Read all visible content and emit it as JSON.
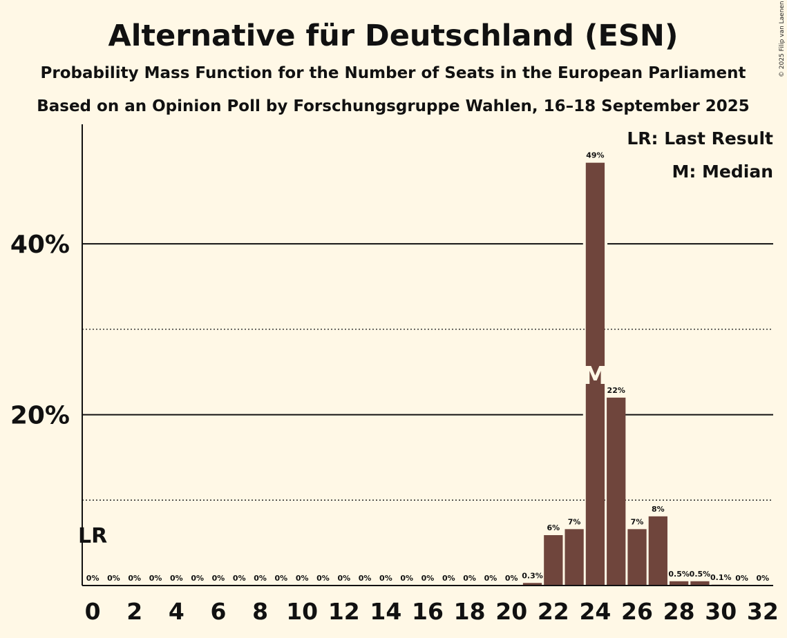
{
  "copyright": "© 2025 Filip van Laenen",
  "chart_data": {
    "type": "bar",
    "title": "Alternative für Deutschland (ESN)",
    "subtitle": "Probability Mass Function for the Number of Seats in the European Parliament",
    "subtitle2": "Based on an Opinion Poll by Forschungsgruppe Wahlen, 16–18 September 2025",
    "x": [
      0,
      1,
      2,
      3,
      4,
      5,
      6,
      7,
      8,
      9,
      10,
      11,
      12,
      13,
      14,
      15,
      16,
      17,
      18,
      19,
      20,
      21,
      22,
      23,
      24,
      25,
      26,
      27,
      28,
      29,
      30,
      31,
      32
    ],
    "values": [
      0,
      0,
      0,
      0,
      0,
      0,
      0,
      0,
      0,
      0,
      0,
      0,
      0,
      0,
      0,
      0,
      0,
      0,
      0,
      0,
      0,
      0.3,
      5.9,
      6.6,
      49.5,
      22,
      6.6,
      8.1,
      0.5,
      0.5,
      0.1,
      0,
      0
    ],
    "data_labels": [
      "0%",
      "0%",
      "0%",
      "0%",
      "0%",
      "0%",
      "0%",
      "0%",
      "0%",
      "0%",
      "0%",
      "0%",
      "0%",
      "0%",
      "0%",
      "0%",
      "0%",
      "0%",
      "0%",
      "0%",
      "0%",
      "0.3%",
      "6%",
      "7%",
      "49%",
      "22%",
      "7%",
      "8%",
      "0.5%",
      "0.5%",
      "0.1%",
      "0%",
      "0%"
    ],
    "x_ticks": [
      0,
      2,
      4,
      6,
      8,
      10,
      12,
      14,
      16,
      18,
      20,
      22,
      24,
      26,
      28,
      30,
      32
    ],
    "y_ticks": [
      {
        "value": 20,
        "label": "20%"
      },
      {
        "value": 40,
        "label": "40%"
      }
    ],
    "y_minor_ticks": [
      10,
      30
    ],
    "ylim": [
      0,
      54
    ],
    "xlim": [
      -0.5,
      32.5
    ],
    "bar_color": "#6f453c",
    "last_result": {
      "x": 0,
      "label": "LR"
    },
    "median": {
      "x": 24,
      "label": "M"
    },
    "legend": {
      "position": "top-right",
      "items": [
        "LR: Last Result",
        "M: Median"
      ]
    }
  }
}
